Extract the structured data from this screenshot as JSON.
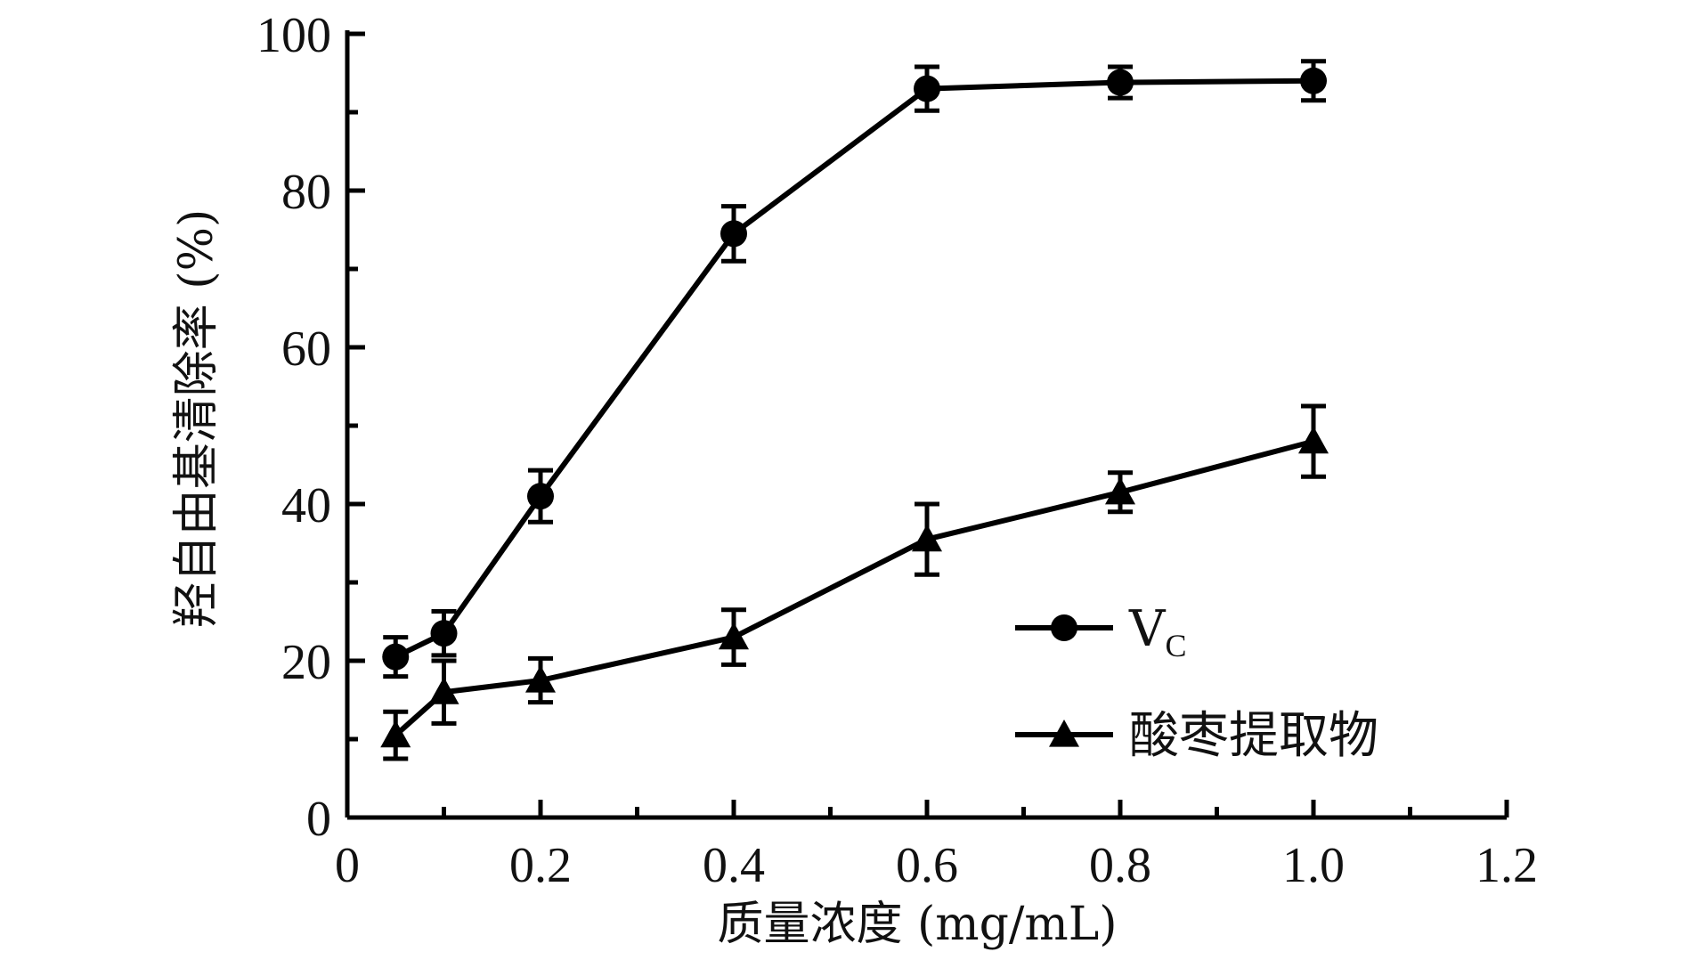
{
  "chart_data": {
    "type": "line",
    "xlabel": "质量浓度 (mg/mL)",
    "ylabel": "羟自由基清除率 (%)",
    "xlim": [
      0,
      1.2
    ],
    "ylim": [
      0,
      100
    ],
    "x_ticks": [
      "0",
      "0.2",
      "0.4",
      "0.6",
      "0.8",
      "1.0",
      "1.2"
    ],
    "x_tick_values": [
      0,
      0.2,
      0.4,
      0.6,
      0.8,
      1.0,
      1.2
    ],
    "y_ticks": [
      "0",
      "20",
      "40",
      "60",
      "80",
      "100"
    ],
    "y_tick_values": [
      0,
      20,
      40,
      60,
      80,
      100
    ],
    "legend_position": "center-right",
    "grid": false,
    "series": [
      {
        "name": "VC",
        "label_main": "V",
        "label_sub": "C",
        "marker": "circle",
        "color": "#000000",
        "x": [
          0.05,
          0.1,
          0.2,
          0.4,
          0.6,
          0.8,
          1.0
        ],
        "values": [
          20.5,
          23.5,
          41.0,
          74.5,
          93.0,
          93.8,
          94.0
        ],
        "errors": [
          2.5,
          2.8,
          3.3,
          3.5,
          2.8,
          2.0,
          2.5
        ]
      },
      {
        "name": "酸枣提取物",
        "label_main": "酸枣提取物",
        "label_sub": "",
        "marker": "triangle",
        "color": "#000000",
        "x": [
          0.05,
          0.1,
          0.2,
          0.4,
          0.6,
          0.8,
          1.0
        ],
        "values": [
          10.5,
          16.0,
          17.5,
          23.0,
          35.5,
          41.5,
          48.0
        ],
        "errors": [
          3.0,
          4.0,
          2.8,
          3.5,
          4.5,
          2.5,
          4.5
        ]
      }
    ]
  }
}
